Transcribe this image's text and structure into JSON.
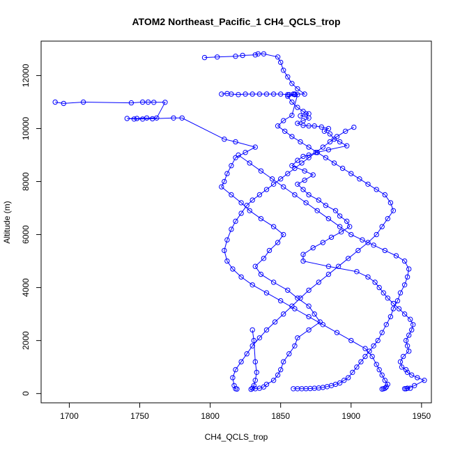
{
  "chart_data": {
    "type": "line",
    "title": "ATOM2 Northeast_Pacific_1 CH4_QCLS_trop",
    "xlabel": "CH4_QCLS_trop",
    "ylabel": "Altitude (m)",
    "xlim": [
      1680,
      1957
    ],
    "ylim": [
      -350,
      13300
    ],
    "xticks": [
      1700,
      1750,
      1800,
      1850,
      1900,
      1950
    ],
    "yticks": [
      0,
      2000,
      4000,
      6000,
      8000,
      10000,
      12000
    ],
    "grid": false,
    "series_color": "#0000ff",
    "marker": "open-circle",
    "series": [
      {
        "x": [
          1796,
          1805,
          1818,
          1823,
          1832,
          1834,
          1838,
          1848,
          1850,
          1852,
          1855,
          1858,
          1862,
          1867,
          1859,
          1856,
          1860,
          1855,
          1858,
          1862,
          1866,
          1868,
          1870,
          1864,
          1870,
          1866,
          1862,
          1866,
          1870,
          1874,
          1879,
          1884,
          1881,
          1885,
          1888,
          1892,
          1897,
          1884,
          1876,
          1870,
          1866,
          1862,
          1858,
          1867,
          1873,
          1867,
          1862,
          1866,
          1870,
          1877,
          1882,
          1889,
          1892,
          1897,
          1899,
          1893,
          1886,
          1880,
          1873,
          1866,
          1866,
          1884,
          1904,
          1912,
          1917,
          1920,
          1923,
          1926,
          1930,
          1934,
          1938,
          1942,
          1944,
          1943,
          1941,
          1939,
          1940,
          1941,
          1937,
          1935,
          1936,
          1939,
          1940,
          1943,
          1947,
          1952,
          1945,
          1940,
          1938,
          1939,
          1942
        ],
        "y": [
          12680,
          12700,
          12730,
          12760,
          12780,
          12820,
          12820,
          12700,
          12500,
          12200,
          11950,
          11700,
          11500,
          11300,
          11300,
          11280,
          11280,
          11220,
          11000,
          10800,
          10650,
          10560,
          10560,
          10480,
          10400,
          10300,
          10200,
          10120,
          10100,
          10100,
          10060,
          10000,
          9900,
          9800,
          9600,
          9500,
          9350,
          9200,
          9100,
          9000,
          8950,
          8800,
          8600,
          8400,
          8250,
          8050,
          7900,
          7700,
          7500,
          7300,
          7100,
          6900,
          6700,
          6500,
          6300,
          6100,
          5900,
          5700,
          5500,
          5250,
          5000,
          4800,
          4600,
          4400,
          4200,
          4000,
          3800,
          3600,
          3400,
          3200,
          3000,
          2800,
          2600,
          2400,
          2200,
          2000,
          1800,
          1600,
          1400,
          1200,
          1000,
          900,
          800,
          700,
          600,
          500,
          300,
          200,
          180,
          180,
          200
        ]
      },
      {
        "x": [
          1690,
          1696,
          1710,
          1744,
          1752,
          1756,
          1760,
          1768,
          1762,
          1755,
          1748,
          1741,
          1746,
          1752,
          1759,
          1774,
          1780,
          1810,
          1818,
          1832,
          1825,
          1818,
          1815,
          1812,
          1810,
          1808,
          1815,
          1822,
          1828,
          1836,
          1845,
          1852,
          1848,
          1842,
          1838,
          1832,
          1836,
          1845,
          1855,
          1862,
          1870,
          1874,
          1878,
          1870,
          1862,
          1860,
          1856,
          1852,
          1850,
          1848,
          1845,
          1840,
          1838,
          1835,
          1832,
          1829,
          1830,
          1831,
          1832,
          1833,
          1832,
          1831,
          1830
        ],
        "y": [
          11000,
          10950,
          11000,
          10970,
          11000,
          11000,
          10990,
          10990,
          10400,
          10400,
          10380,
          10380,
          10360,
          10360,
          10370,
          10400,
          10400,
          9600,
          9500,
          9300,
          9100,
          8900,
          8600,
          8300,
          8000,
          7800,
          7500,
          7200,
          6900,
          6600,
          6300,
          6000,
          5700,
          5400,
          5100,
          4800,
          4500,
          4200,
          3900,
          3600,
          3300,
          3000,
          2700,
          2400,
          2100,
          1800,
          1500,
          1200,
          900,
          700,
          500,
          350,
          250,
          200,
          180,
          160,
          200,
          300,
          500,
          800,
          1200,
          2000,
          2400
        ]
      },
      {
        "x": [
          1808,
          1812,
          1815,
          1820,
          1825,
          1830,
          1835,
          1840,
          1845,
          1850,
          1855,
          1860,
          1862,
          1858,
          1852,
          1848,
          1853,
          1858,
          1864,
          1870,
          1876,
          1882,
          1888,
          1894,
          1900,
          1906,
          1912,
          1918,
          1924,
          1928,
          1930,
          1926,
          1922,
          1918,
          1912,
          1905,
          1898,
          1891,
          1884,
          1877,
          1870,
          1864,
          1858,
          1852,
          1846,
          1840,
          1835,
          1830,
          1826,
          1822,
          1818,
          1816,
          1817,
          1818,
          1819
        ],
        "y": [
          11300,
          11320,
          11300,
          11280,
          11300,
          11300,
          11300,
          11300,
          11300,
          11300,
          11280,
          11300,
          11280,
          10500,
          10300,
          10100,
          9900,
          9700,
          9500,
          9300,
          9100,
          8900,
          8700,
          8500,
          8300,
          8100,
          7900,
          7700,
          7500,
          7200,
          6900,
          6600,
          6300,
          6000,
          5700,
          5400,
          5100,
          4800,
          4500,
          4200,
          3900,
          3600,
          3300,
          3000,
          2700,
          2400,
          2100,
          1800,
          1500,
          1200,
          900,
          600,
          300,
          180,
          170
        ]
      },
      {
        "x": [
          1902,
          1896,
          1890,
          1885,
          1880,
          1875,
          1870,
          1865,
          1860,
          1855,
          1850,
          1845,
          1840,
          1835,
          1830,
          1826,
          1822,
          1818,
          1815,
          1812,
          1810,
          1812,
          1816,
          1822,
          1830,
          1840,
          1850,
          1860,
          1870,
          1880,
          1890,
          1900,
          1910,
          1915,
          1918,
          1920,
          1922,
          1924,
          1926,
          1925,
          1924,
          1923,
          1922
        ],
        "y": [
          10050,
          9900,
          9700,
          9500,
          9300,
          9100,
          8900,
          8700,
          8500,
          8300,
          8100,
          7900,
          7700,
          7500,
          7300,
          7100,
          6800,
          6500,
          6200,
          5800,
          5400,
          5000,
          4700,
          4400,
          4100,
          3800,
          3500,
          3200,
          2900,
          2600,
          2300,
          2000,
          1700,
          1400,
          1100,
          900,
          700,
          500,
          350,
          250,
          200,
          180,
          170
        ]
      },
      {
        "x": [
          1820,
          1828,
          1836,
          1844,
          1852,
          1860,
          1868,
          1876,
          1884,
          1892,
          1900,
          1908,
          1916,
          1924,
          1932,
          1938,
          1941,
          1940,
          1938,
          1935,
          1933,
          1930,
          1928,
          1925,
          1922,
          1919,
          1916,
          1913,
          1910,
          1907,
          1904,
          1901,
          1898,
          1895,
          1892,
          1889,
          1886,
          1883,
          1880,
          1877,
          1874,
          1871,
          1868,
          1865,
          1862,
          1859
        ],
        "y": [
          9000,
          8700,
          8400,
          8100,
          7800,
          7500,
          7200,
          6900,
          6600,
          6300,
          6000,
          5800,
          5600,
          5400,
          5200,
          5000,
          4700,
          4400,
          4100,
          3800,
          3500,
          3200,
          2900,
          2600,
          2300,
          2000,
          1800,
          1600,
          1400,
          1200,
          1000,
          800,
          600,
          500,
          400,
          350,
          300,
          260,
          230,
          210,
          200,
          190,
          185,
          180,
          180,
          180
        ]
      }
    ]
  }
}
